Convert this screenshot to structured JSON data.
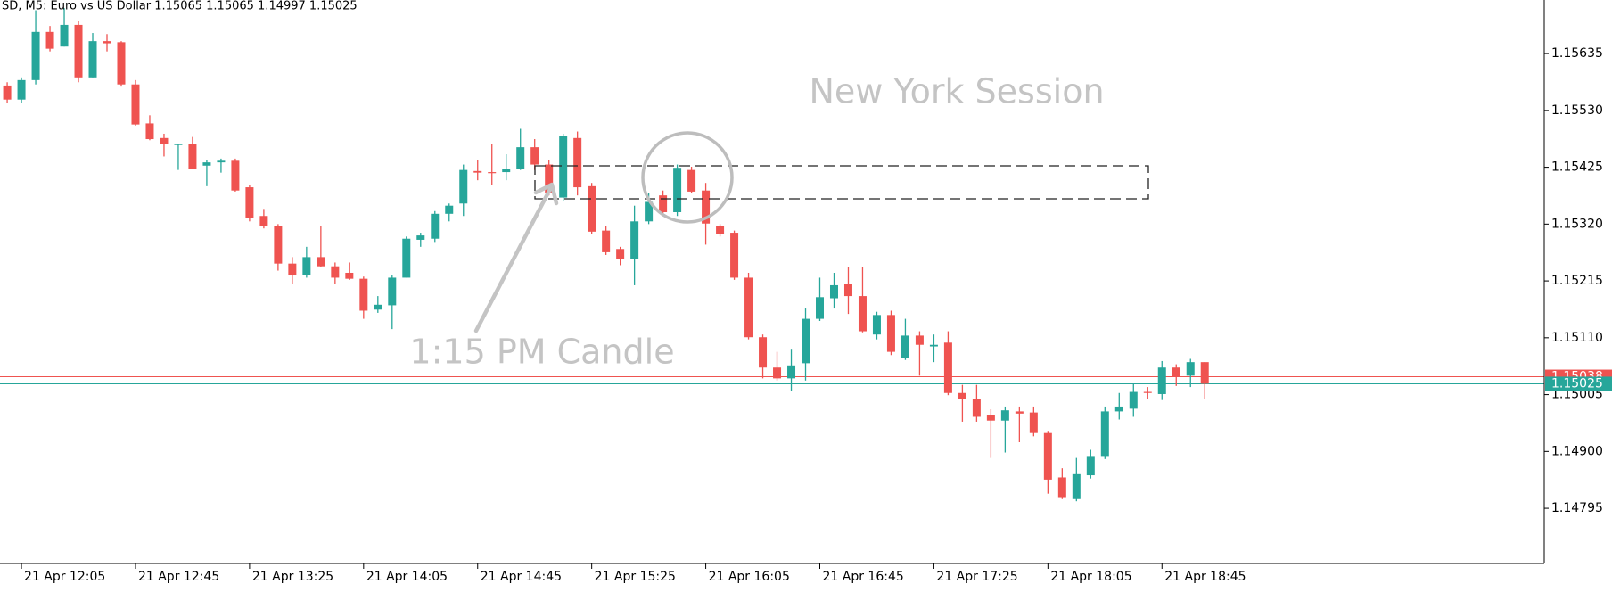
{
  "chart_data": {
    "type": "candlestick",
    "title": "SD, M5:  Euro vs US Dollar  1.15065 1.15065 1.14997 1.15025",
    "categories": [
      null,
      "21 Apr 12:05",
      null,
      null,
      null,
      null,
      null,
      null,
      null,
      "21 Apr 12:45",
      null,
      null,
      null,
      null,
      null,
      null,
      null,
      "21 Apr 13:25",
      null,
      null,
      null,
      null,
      null,
      null,
      null,
      "21 Apr 14:05",
      null,
      null,
      null,
      null,
      null,
      null,
      null,
      "21 Apr 14:45",
      null,
      null,
      null,
      null,
      null,
      null,
      null,
      "21 Apr 15:25",
      null,
      null,
      null,
      null,
      null,
      null,
      null,
      "21 Apr 16:05",
      null,
      null,
      null,
      null,
      null,
      null,
      null,
      "21 Apr 16:45",
      null,
      null,
      null,
      null,
      null,
      null,
      null,
      "21 Apr 17:25",
      null,
      null,
      null,
      null,
      null,
      null,
      null,
      "21 Apr 18:05",
      null,
      null,
      null,
      null,
      null,
      null,
      null,
      "21 Apr 18:45",
      null,
      null,
      null
    ],
    "open": [
      1.15576,
      1.1555,
      1.15586,
      1.15675,
      1.15648,
      1.15688,
      1.15591,
      1.15658,
      1.15656,
      1.15578,
      1.15506,
      1.15479,
      1.15466,
      1.15468,
      1.15428,
      1.15434,
      1.15437,
      1.15388,
      1.15335,
      1.15316,
      1.15247,
      1.15226,
      1.15259,
      1.15242,
      1.1523,
      1.15219,
      1.15162,
      1.1517,
      1.15221,
      1.15291,
      1.15293,
      1.15339,
      1.15358,
      1.15418,
      1.15416,
      1.15416,
      1.15422,
      1.15462,
      1.1543,
      1.15369,
      1.15479,
      1.1539,
      1.15308,
      1.15274,
      1.15255,
      1.15325,
      1.15373,
      1.15342,
      1.1542,
      1.15382,
      1.15316,
      1.15304,
      1.15221,
      1.15111,
      1.15055,
      1.15035,
      1.15063,
      1.15145,
      1.15183,
      1.15209,
      1.15187,
      1.15116,
      1.15152,
      1.15073,
      1.15114,
      1.15094,
      1.15101,
      1.15008,
      1.14997,
      1.14968,
      1.14957,
      1.14974,
      1.14972,
      1.14934,
      1.14852,
      1.14812,
      1.14856,
      1.1489,
      1.14974,
      1.14979,
      1.1501,
      1.15006,
      1.15055,
      1.1504,
      1.15065
    ],
    "high": [
      1.15582,
      1.15591,
      1.15715,
      1.15686,
      1.15719,
      1.15696,
      1.15673,
      1.15671,
      1.15658,
      1.15586,
      1.15521,
      1.15487,
      1.15468,
      1.15481,
      1.15439,
      1.15441,
      1.15441,
      1.15392,
      1.15348,
      1.1532,
      1.15259,
      1.15278,
      1.15316,
      1.15249,
      1.15249,
      1.15223,
      1.15187,
      1.15225,
      1.15297,
      1.15304,
      1.15344,
      1.15358,
      1.1543,
      1.15439,
      1.15468,
      1.15449,
      1.15496,
      1.15477,
      1.15439,
      1.15487,
      1.15491,
      1.15396,
      1.15316,
      1.15278,
      1.15354,
      1.15377,
      1.15382,
      1.1543,
      1.15426,
      1.15396,
      1.1532,
      1.15308,
      1.1523,
      1.15116,
      1.15084,
      1.15088,
      1.15164,
      1.15221,
      1.1523,
      1.1524,
      1.1524,
      1.15158,
      1.1516,
      1.15145,
      1.15122,
      1.15116,
      1.15122,
      1.15023,
      1.15023,
      1.14978,
      1.14983,
      1.14983,
      1.14983,
      1.14938,
      1.14869,
      1.14888,
      1.14903,
      1.14983,
      1.15008,
      1.15025,
      1.15019,
      1.15067,
      1.15061,
      1.15071,
      1.15065
    ],
    "low": [
      1.15544,
      1.15544,
      1.15578,
      1.15639,
      1.15648,
      1.15582,
      1.15591,
      1.15639,
      1.15574,
      1.15502,
      1.15475,
      1.15445,
      1.1542,
      1.15422,
      1.1539,
      1.15415,
      1.1538,
      1.15325,
      1.15312,
      1.15234,
      1.15209,
      1.15221,
      1.1524,
      1.15209,
      1.15217,
      1.15145,
      1.15156,
      1.15126,
      1.15221,
      1.15278,
      1.15287,
      1.15325,
      1.15335,
      1.15401,
      1.15392,
      1.15401,
      1.1542,
      1.1542,
      1.15373,
      1.15363,
      1.15373,
      1.15302,
      1.15263,
      1.15244,
      1.15207,
      1.1532,
      1.15335,
      1.15335,
      1.15377,
      1.15282,
      1.15297,
      1.15217,
      1.15107,
      1.15035,
      1.15031,
      1.15012,
      1.15031,
      1.15141,
      1.15164,
      1.15154,
      1.1512,
      1.15107,
      1.15078,
      1.15069,
      1.1504,
      1.15065,
      1.15004,
      1.14955,
      1.14955,
      1.14888,
      1.14898,
      1.14917,
      1.14928,
      1.14822,
      1.14812,
      1.14808,
      1.1485,
      1.14886,
      1.14959,
      1.14964,
      1.14997,
      1.14995,
      1.15021,
      1.15019,
      1.14997
    ],
    "close": [
      1.1555,
      1.15586,
      1.15675,
      1.15644,
      1.15688,
      1.15591,
      1.15658,
      1.15654,
      1.15578,
      1.15504,
      1.15477,
      1.15468,
      1.15468,
      1.15422,
      1.15434,
      1.15437,
      1.15382,
      1.15331,
      1.15316,
      1.15247,
      1.15225,
      1.15259,
      1.15242,
      1.15221,
      1.15219,
      1.1516,
      1.15171,
      1.15221,
      1.15293,
      1.15299,
      1.15339,
      1.15354,
      1.1542,
      1.15415,
      1.15415,
      1.15422,
      1.15462,
      1.1543,
      1.15378,
      1.15483,
      1.15388,
      1.15306,
      1.15268,
      1.15255,
      1.15325,
      1.15361,
      1.15342,
      1.15424,
      1.1538,
      1.15321,
      1.15302,
      1.15221,
      1.15111,
      1.15055,
      1.15035,
      1.15059,
      1.15145,
      1.15185,
      1.15207,
      1.15187,
      1.15122,
      1.15152,
      1.15084,
      1.15114,
      1.15097,
      1.15097,
      1.15008,
      1.14997,
      1.14964,
      1.14957,
      1.14976,
      1.1497,
      1.14934,
      1.14848,
      1.14814,
      1.14858,
      1.1489,
      1.14974,
      1.14983,
      1.1501,
      1.15008,
      1.15055,
      1.15038,
      1.15065,
      1.15025
    ],
    "up_color": "#26a69a",
    "down_color": "#ef5350",
    "ylim": [
      1.14693,
      1.15734
    ],
    "yticks": [
      {
        "value": 1.149,
        "label": "1.14900"
      },
      1.14795,
      1.15005,
      {
        "value": 1.1511,
        "label": "1.15110"
      },
      1.15215,
      {
        "value": 1.1532,
        "label": "1.15320"
      },
      1.15425,
      {
        "value": 1.1553,
        "label": "1.15530"
      },
      1.15635
    ],
    "grid": false,
    "price_lines": [
      {
        "value": 1.15038,
        "color": "#ef5350"
      },
      {
        "value": 1.15025,
        "color": "#26a69a"
      }
    ],
    "annotations": [
      "New York Session",
      "1:15 PM Candle"
    ]
  }
}
